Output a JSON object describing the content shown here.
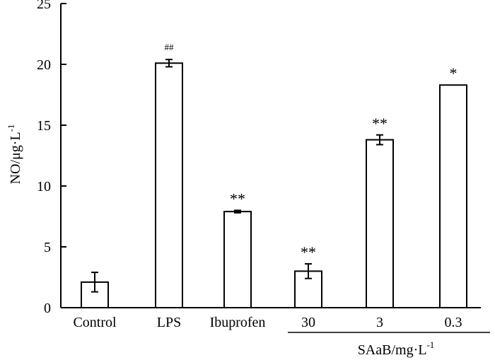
{
  "chart_data": {
    "type": "bar",
    "categories": [
      "Control",
      "LPS",
      "Ibuprofen",
      "30",
      "3",
      "0.3"
    ],
    "values": [
      2.1,
      20.1,
      7.9,
      3.0,
      13.8,
      18.3
    ],
    "errors": [
      0.8,
      0.3,
      0.1,
      0.6,
      0.4,
      0.0
    ],
    "annotations": [
      "",
      "##",
      "**",
      "**",
      "**",
      "*"
    ],
    "ylabel_main": "NO/μg·L",
    "ylabel_sup": "-1",
    "group_label_main": "SAaB/mg·L",
    "group_label_sup": "-1",
    "group_categories": [
      "30",
      "3",
      "0.3"
    ],
    "ylim": [
      0,
      25
    ],
    "yticks": [
      0,
      5,
      10,
      15,
      20,
      25
    ],
    "grid": false
  }
}
